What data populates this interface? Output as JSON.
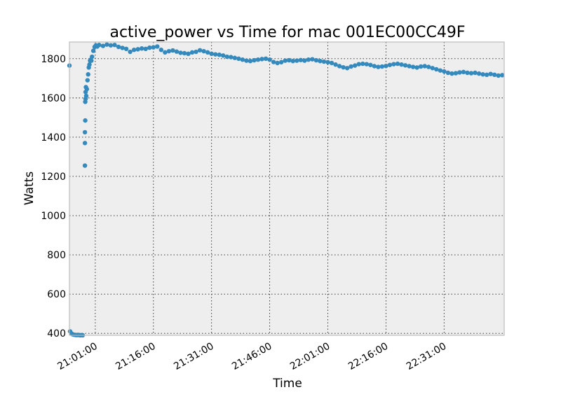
{
  "chart_data": {
    "type": "scatter",
    "title": "active_power vs Time for mac 001EC00CC49F",
    "xlabel": "Time",
    "ylabel": "Watts",
    "xlim": [
      "20:54:20",
      "22:46:30"
    ],
    "ylim": [
      390,
      1885
    ],
    "y_ticks": [
      400,
      600,
      800,
      1000,
      1200,
      1400,
      1600,
      1800
    ],
    "x_ticks": [
      "21:01:00",
      "21:16:00",
      "21:31:00",
      "21:46:00",
      "22:01:00",
      "22:16:00",
      "22:31:00"
    ],
    "grid": true,
    "background": "#EEEEEE",
    "series": [
      {
        "color": "#348ABD",
        "points": [
          [
            "20:54:20",
            1765
          ],
          [
            "20:54:30",
            410
          ],
          [
            "20:54:50",
            400
          ],
          [
            "20:55:10",
            395
          ],
          [
            "20:55:30",
            393
          ],
          [
            "20:55:50",
            392
          ],
          [
            "20:56:10",
            391
          ],
          [
            "20:56:30",
            392
          ],
          [
            "20:56:50",
            391
          ],
          [
            "20:57:10",
            390
          ],
          [
            "20:57:30",
            391
          ],
          [
            "20:57:45",
            390
          ],
          [
            "20:58:20",
            1255
          ],
          [
            "20:58:20",
            1370
          ],
          [
            "20:58:20",
            1425
          ],
          [
            "20:58:25",
            1485
          ],
          [
            "20:58:25",
            1580
          ],
          [
            "20:58:30",
            1595
          ],
          [
            "20:58:30",
            1630
          ],
          [
            "20:58:35",
            1655
          ],
          [
            "20:58:40",
            1610
          ],
          [
            "20:58:50",
            1645
          ],
          [
            "20:59:00",
            1690
          ],
          [
            "20:59:10",
            1720
          ],
          [
            "20:59:20",
            1755
          ],
          [
            "20:59:30",
            1770
          ],
          [
            "20:59:40",
            1790
          ],
          [
            "20:59:50",
            1795
          ],
          [
            "21:00:00",
            1790
          ],
          [
            "21:00:10",
            1810
          ],
          [
            "21:00:30",
            1840
          ],
          [
            "21:00:50",
            1860
          ],
          [
            "21:01:10",
            1868
          ],
          [
            "21:01:30",
            1862
          ],
          [
            "21:02:00",
            1870
          ],
          [
            "21:03:00",
            1865
          ],
          [
            "21:04:00",
            1872
          ],
          [
            "21:05:00",
            1868
          ],
          [
            "21:06:00",
            1870
          ],
          [
            "21:07:00",
            1860
          ],
          [
            "21:08:00",
            1855
          ],
          [
            "21:09:00",
            1850
          ],
          [
            "21:10:00",
            1835
          ],
          [
            "21:11:00",
            1845
          ],
          [
            "21:12:00",
            1848
          ],
          [
            "21:13:00",
            1852
          ],
          [
            "21:14:00",
            1850
          ],
          [
            "21:15:00",
            1856
          ],
          [
            "21:16:00",
            1858
          ],
          [
            "21:17:00",
            1862
          ],
          [
            "21:18:00",
            1845
          ],
          [
            "21:19:00",
            1832
          ],
          [
            "21:20:00",
            1838
          ],
          [
            "21:21:00",
            1842
          ],
          [
            "21:22:00",
            1836
          ],
          [
            "21:23:00",
            1830
          ],
          [
            "21:24:00",
            1828
          ],
          [
            "21:25:00",
            1825
          ],
          [
            "21:26:00",
            1832
          ],
          [
            "21:27:00",
            1835
          ],
          [
            "21:28:00",
            1843
          ],
          [
            "21:29:00",
            1838
          ],
          [
            "21:30:00",
            1832
          ],
          [
            "21:31:00",
            1825
          ],
          [
            "21:32:00",
            1822
          ],
          [
            "21:33:00",
            1820
          ],
          [
            "21:34:00",
            1816
          ],
          [
            "21:35:00",
            1810
          ],
          [
            "21:36:00",
            1808
          ],
          [
            "21:37:00",
            1804
          ],
          [
            "21:38:00",
            1800
          ],
          [
            "21:39:00",
            1795
          ],
          [
            "21:40:00",
            1790
          ],
          [
            "21:41:00",
            1788
          ],
          [
            "21:42:00",
            1792
          ],
          [
            "21:43:00",
            1795
          ],
          [
            "21:44:00",
            1798
          ],
          [
            "21:45:00",
            1800
          ],
          [
            "21:46:00",
            1795
          ],
          [
            "21:47:00",
            1783
          ],
          [
            "21:48:00",
            1778
          ],
          [
            "21:49:00",
            1782
          ],
          [
            "21:50:00",
            1790
          ],
          [
            "21:51:00",
            1792
          ],
          [
            "21:52:00",
            1788
          ],
          [
            "21:53:00",
            1790
          ],
          [
            "21:54:00",
            1793
          ],
          [
            "21:55:00",
            1790
          ],
          [
            "21:56:00",
            1795
          ],
          [
            "21:57:00",
            1797
          ],
          [
            "21:58:00",
            1792
          ],
          [
            "21:59:00",
            1788
          ],
          [
            "22:00:00",
            1785
          ],
          [
            "22:01:00",
            1782
          ],
          [
            "22:02:00",
            1778
          ],
          [
            "22:03:00",
            1770
          ],
          [
            "22:04:00",
            1762
          ],
          [
            "22:05:00",
            1756
          ],
          [
            "22:06:00",
            1752
          ],
          [
            "22:07:00",
            1760
          ],
          [
            "22:08:00",
            1765
          ],
          [
            "22:09:00",
            1772
          ],
          [
            "22:10:00",
            1774
          ],
          [
            "22:11:00",
            1772
          ],
          [
            "22:12:00",
            1768
          ],
          [
            "22:13:00",
            1762
          ],
          [
            "22:14:00",
            1758
          ],
          [
            "22:15:00",
            1760
          ],
          [
            "22:16:00",
            1763
          ],
          [
            "22:17:00",
            1768
          ],
          [
            "22:18:00",
            1772
          ],
          [
            "22:19:00",
            1774
          ],
          [
            "22:20:00",
            1770
          ],
          [
            "22:21:00",
            1766
          ],
          [
            "22:22:00",
            1762
          ],
          [
            "22:23:00",
            1758
          ],
          [
            "22:24:00",
            1755
          ],
          [
            "22:25:00",
            1760
          ],
          [
            "22:26:00",
            1762
          ],
          [
            "22:27:00",
            1758
          ],
          [
            "22:28:00",
            1752
          ],
          [
            "22:29:00",
            1746
          ],
          [
            "22:30:00",
            1740
          ],
          [
            "22:31:00",
            1735
          ],
          [
            "22:32:00",
            1728
          ],
          [
            "22:33:00",
            1724
          ],
          [
            "22:34:00",
            1726
          ],
          [
            "22:35:00",
            1730
          ],
          [
            "22:36:00",
            1732
          ],
          [
            "22:37:00",
            1728
          ],
          [
            "22:38:00",
            1726
          ],
          [
            "22:39:00",
            1728
          ],
          [
            "22:40:00",
            1724
          ],
          [
            "22:41:00",
            1720
          ],
          [
            "22:42:00",
            1718
          ],
          [
            "22:43:00",
            1722
          ],
          [
            "22:44:00",
            1718
          ],
          [
            "22:45:00",
            1714
          ],
          [
            "22:46:00",
            1716
          ]
        ]
      }
    ]
  }
}
